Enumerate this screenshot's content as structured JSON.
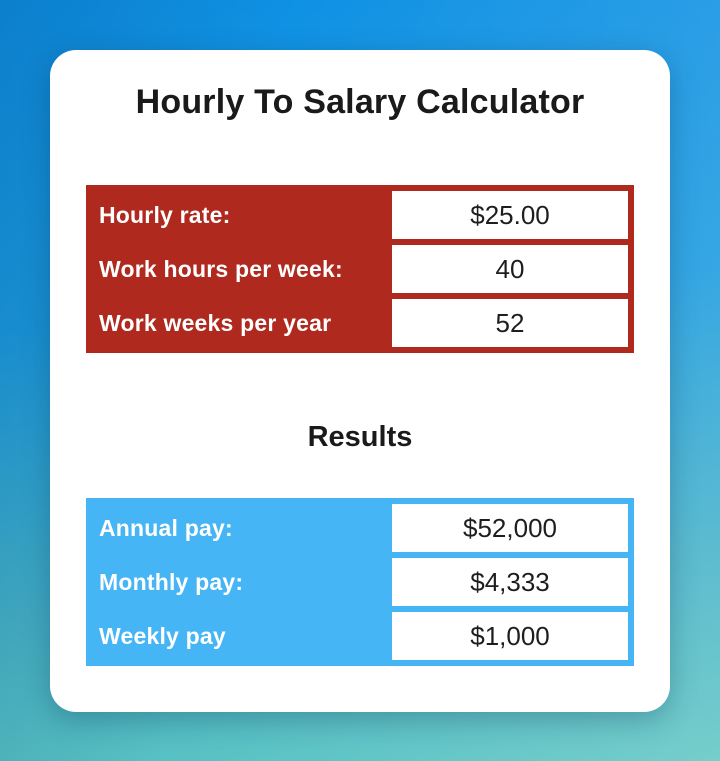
{
  "page": {
    "title": "Hourly To Salary Calculator",
    "results_heading": "Results"
  },
  "colors": {
    "background_top_blue": "#0e90e4",
    "background_bottom_teal": "#5ec6c2",
    "card_background": "#ffffff",
    "input_table_red": "#b0291f",
    "results_table_blue": "#45b5f5",
    "label_text": "#ffffff",
    "value_text": "#1e1e1e",
    "title_text": "#1a1a1a"
  },
  "input_table": {
    "rows": [
      {
        "label": "Hourly rate:",
        "value": "$25.00"
      },
      {
        "label": "Work hours per week:",
        "value": "40"
      },
      {
        "label": "Work weeks per year",
        "value": "52"
      }
    ]
  },
  "results_table": {
    "rows": [
      {
        "label": "Annual pay:",
        "value": "$52,000"
      },
      {
        "label": "Monthly pay:",
        "value": "$4,333"
      },
      {
        "label": "Weekly pay",
        "value": "$1,000"
      }
    ]
  }
}
